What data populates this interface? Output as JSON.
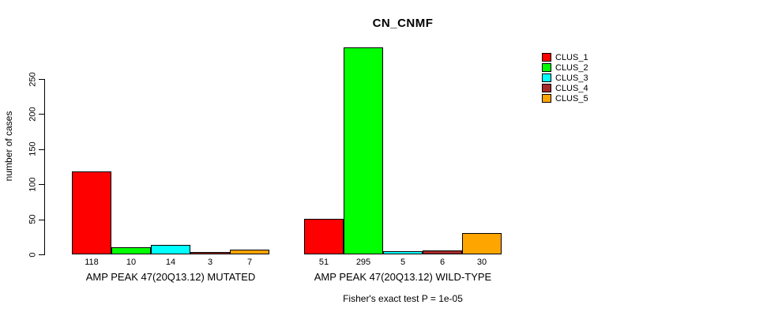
{
  "chart_data": {
    "type": "bar",
    "title": "CN_CNMF",
    "ylabel": "number of cases",
    "xlabel": "",
    "ylim": [
      0,
      250
    ],
    "yticks": [
      0,
      50,
      100,
      150,
      200,
      250
    ],
    "grid": false,
    "legend_position": "top-right",
    "bar_borders": "#000000",
    "categories": [
      "AMP PEAK 47(20Q13.12) MUTATED",
      "AMP PEAK 47(20Q13.12) WILD-TYPE"
    ],
    "series": [
      {
        "name": "CLUS_1",
        "color": "#FF0000",
        "values": [
          118,
          51
        ]
      },
      {
        "name": "CLUS_2",
        "color": "#00FF00",
        "values": [
          10,
          295
        ]
      },
      {
        "name": "CLUS_3",
        "color": "#00FFFF",
        "values": [
          14,
          5
        ]
      },
      {
        "name": "CLUS_4",
        "color": "#A52A2A",
        "values": [
          3,
          6
        ]
      },
      {
        "name": "CLUS_5",
        "color": "#FFA500",
        "values": [
          7,
          30
        ]
      }
    ],
    "value_labels_shown": true,
    "annotation": "Fisher's exact test P = 1e-05"
  }
}
